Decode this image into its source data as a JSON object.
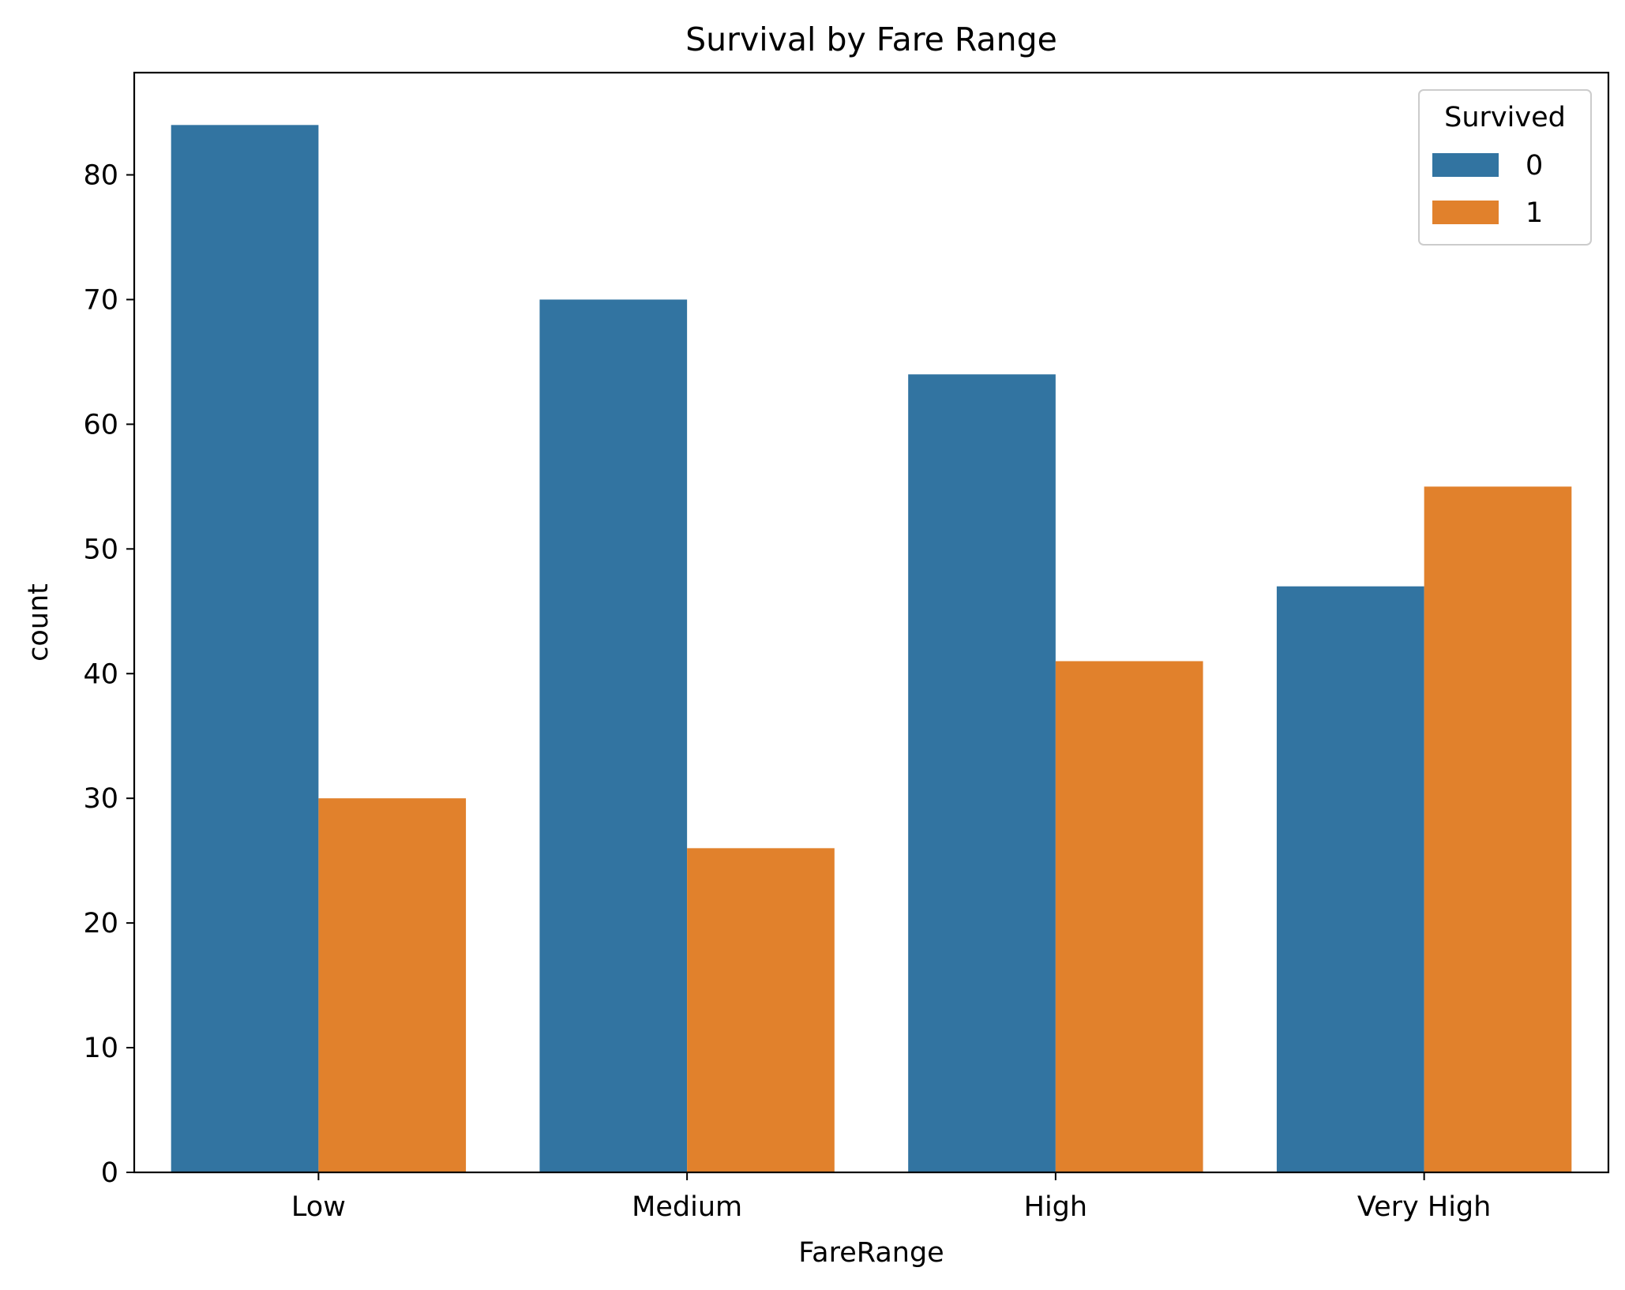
{
  "chart_data": {
    "type": "bar",
    "title": "Survival by Fare Range",
    "xlabel": "FareRange",
    "ylabel": "count",
    "categories": [
      "Low",
      "Medium",
      "High",
      "Very High"
    ],
    "series": [
      {
        "name": "0",
        "values": [
          84,
          70,
          64,
          47
        ],
        "color": "#3274a1"
      },
      {
        "name": "1",
        "values": [
          30,
          26,
          41,
          55
        ],
        "color": "#e1812c"
      }
    ],
    "legend": {
      "title": "Survived",
      "placement": "top-right"
    },
    "ylim": [
      0,
      88.2
    ],
    "yticks": [
      0,
      10,
      20,
      30,
      40,
      50,
      60,
      70,
      80
    ],
    "grid": false
  }
}
